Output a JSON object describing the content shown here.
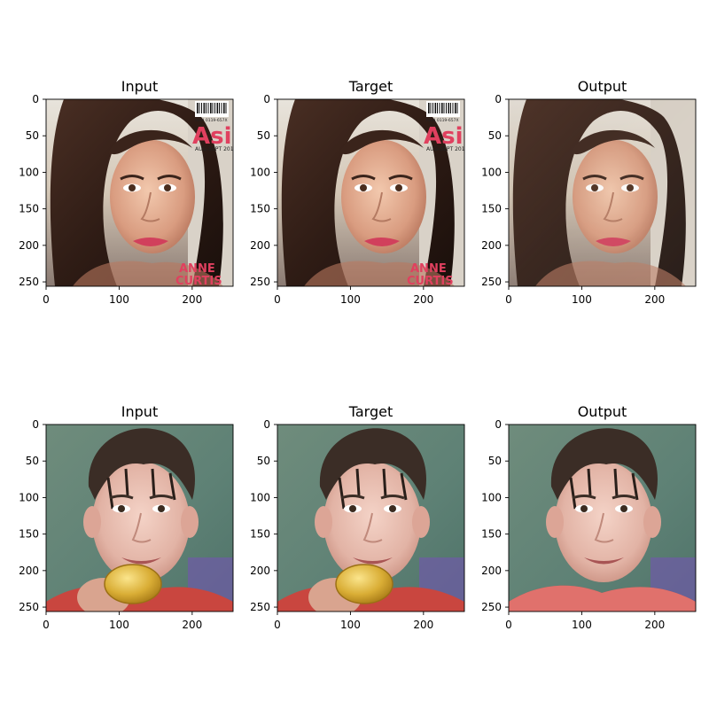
{
  "figure": {
    "rows": [
      {
        "panels": [
          {
            "title": "Input",
            "xticks": [
              "0",
              "100",
              "200"
            ],
            "yticks": [
              "0",
              "50",
              "100",
              "150",
              "200",
              "250"
            ],
            "image_description": "Woman with long brown hair on a magazine cover",
            "overlay_text": [
              "Asia",
              "AUG-SEPT 2011",
              "ISSN 0119-657X",
              "ANNE",
              "CURTIS"
            ]
          },
          {
            "title": "Target",
            "xticks": [
              "0",
              "100",
              "200"
            ],
            "yticks": [
              "0",
              "50",
              "100",
              "150",
              "200",
              "250"
            ],
            "image_description": "Same woman, target image",
            "overlay_text": [
              "Asia",
              "AUG-SEPT 2011",
              "ISSN 0119-657X",
              "ANNE",
              "CURTIS"
            ]
          },
          {
            "title": "Output",
            "xticks": [
              "0",
              "100",
              "200"
            ],
            "yticks": [
              "0",
              "50",
              "100",
              "150",
              "200",
              "250"
            ],
            "image_description": "Generated face with soft blurred background",
            "overlay_text": []
          }
        ]
      },
      {
        "panels": [
          {
            "title": "Input",
            "xticks": [
              "0",
              "100",
              "200"
            ],
            "yticks": [
              "0",
              "50",
              "100",
              "150",
              "200",
              "250"
            ],
            "image_description": "Man biting a gold medal",
            "overlay_text": []
          },
          {
            "title": "Target",
            "xticks": [
              "0",
              "100",
              "200"
            ],
            "yticks": [
              "0",
              "50",
              "100",
              "150",
              "200",
              "250"
            ],
            "image_description": "Same man, target image",
            "overlay_text": []
          },
          {
            "title": "Output",
            "xticks": [
              "0",
              "100",
              "200"
            ],
            "yticks": [
              "0",
              "50",
              "100",
              "150",
              "200",
              "250"
            ],
            "image_description": "Generated smiling face of man",
            "overlay_text": []
          }
        ]
      }
    ]
  }
}
